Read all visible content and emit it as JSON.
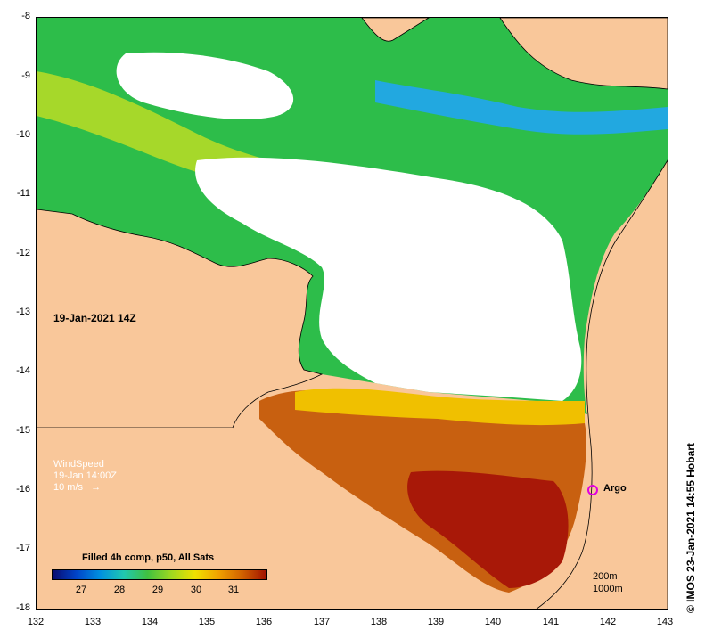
{
  "map": {
    "date_label": "19-Jan-2021 14Z",
    "y_ticks": [
      "-8",
      "-9",
      "-10",
      "-11",
      "-12",
      "-13",
      "-14",
      "-15",
      "-16",
      "-17",
      "-18"
    ],
    "x_ticks": [
      "132",
      "133",
      "134",
      "135",
      "136",
      "137",
      "138",
      "139",
      "140",
      "141",
      "142",
      "143"
    ],
    "land_color": "#f9c79a"
  },
  "wind": {
    "title": "WindSpeed",
    "time": "19-Jan 14:00Z",
    "scale": "10 m/s",
    "arrow": "→"
  },
  "argo": {
    "label": "Argo",
    "color": "#e000e0"
  },
  "legend": {
    "title": "Filled 4h comp, p50, All Sats",
    "ticks": [
      "27",
      "28",
      "29",
      "30",
      "31"
    ],
    "depth_200": "200m",
    "depth_1000": "1000m"
  },
  "credit": "© IMOS 23-Jan-2021 14:55 Hobart"
}
